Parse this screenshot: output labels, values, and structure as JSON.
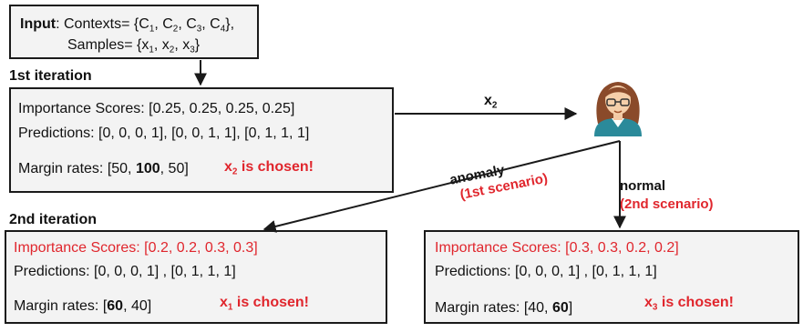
{
  "input_box": {
    "label": "Input",
    "contexts_prefix": ": Contexts= {",
    "contexts": [
      "C",
      "1",
      ", C",
      "2",
      ", C",
      "3",
      ", C",
      "4",
      "},"
    ],
    "samples_prefix": "Samples= {",
    "samples": [
      "x",
      "1",
      ", x",
      "2",
      ", x",
      "3",
      "}"
    ]
  },
  "iteration1": {
    "heading": "1st iteration",
    "importance": "Importance Scores: [0.25, 0.25, 0.25, 0.25]",
    "predictions": "Predictions:  [0, 0, 0, 1],  [0, 0, 1, 1],  [0, 1, 1, 1]",
    "margin_prefix": "Margin rates: [50, ",
    "margin_bold": "100",
    "margin_suffix": ", 50]",
    "chosen_var": "x",
    "chosen_sub": "2",
    "chosen_text": " is chosen!"
  },
  "arrow_label": {
    "var": "x",
    "sub": "2"
  },
  "branch_anomaly": {
    "label": "anomaly",
    "scenario": "(1st scenario)"
  },
  "branch_normal": {
    "label": "normal",
    "scenario": "(2nd scenario)"
  },
  "iteration2": {
    "heading": "2nd iteration",
    "left": {
      "importance": "Importance Scores: [0.2, 0.2, 0.3, 0.3]",
      "predictions": "Predictions:  [0, 0, 0, 1] ,  [0, 1, 1, 1]",
      "margin_prefix": "Margin rates: [",
      "margin_bold": "60",
      "margin_suffix": ", 40]",
      "chosen_var": "x",
      "chosen_sub": "1",
      "chosen_text": " is chosen!"
    },
    "right": {
      "importance": "Importance Scores: [0.3, 0.3, 0.2, 0.2]",
      "predictions": "Predictions:  [0, 0, 0, 1] ,  [0, 1, 1, 1]",
      "margin_prefix": "Margin rates: [40, ",
      "margin_bold": "60",
      "margin_suffix": "]",
      "chosen_var": "x",
      "chosen_sub": "3",
      "chosen_text": " is chosen!"
    }
  },
  "colors": {
    "accent_red": "#e0262d",
    "box_fill": "#f3f3f3",
    "teal": "#2b8a9a"
  },
  "icons": {
    "user": "analyst-avatar-icon"
  }
}
